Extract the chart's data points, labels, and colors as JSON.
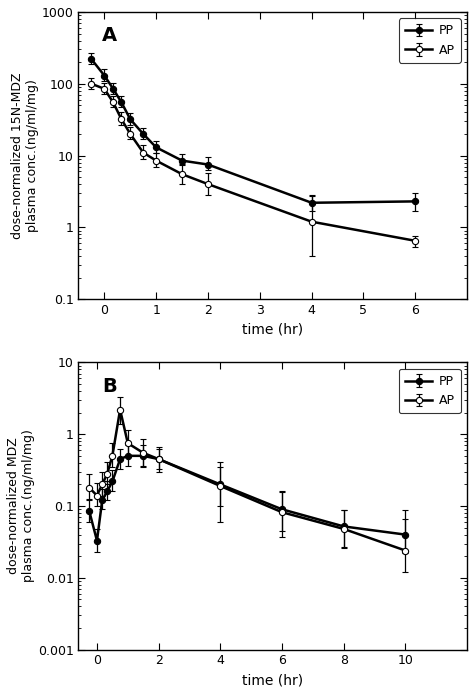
{
  "panel_A": {
    "title": "A",
    "xlabel": "time (hr)",
    "ylabel": "dose-normalized 15N-MDZ\nplasma conc.(ng/ml/mg)",
    "xlim": [
      -0.5,
      7
    ],
    "ylim": [
      0.1,
      1000
    ],
    "xticks": [
      0,
      1,
      2,
      3,
      4,
      5,
      6
    ],
    "yticks": [
      0.1,
      1,
      10,
      100,
      1000
    ],
    "PP": {
      "x": [
        -0.25,
        0.0,
        0.17,
        0.33,
        0.5,
        0.75,
        1.0,
        1.5,
        2.0,
        4.0,
        6.0
      ],
      "y": [
        220,
        130,
        85,
        55,
        32,
        20,
        13,
        8.5,
        7.5,
        2.2,
        2.3
      ],
      "yerr_lo": [
        30,
        20,
        12,
        8,
        5,
        3,
        2,
        1.2,
        1.2,
        0.5,
        0.6
      ],
      "yerr_hi": [
        45,
        28,
        18,
        12,
        7,
        4,
        3,
        2.0,
        2.0,
        0.6,
        0.7
      ],
      "markerfacecolor": "#000000",
      "label": "PP"
    },
    "AP": {
      "x": [
        -0.25,
        0.0,
        0.17,
        0.33,
        0.5,
        0.75,
        1.0,
        1.5,
        2.0,
        4.0,
        6.0
      ],
      "y": [
        100,
        85,
        55,
        32,
        20,
        11,
        8.5,
        5.5,
        4.0,
        1.2,
        0.65
      ],
      "yerr_lo": [
        15,
        12,
        8,
        5,
        3,
        2,
        1.5,
        1.5,
        1.2,
        0.8,
        0.12
      ],
      "yerr_hi": [
        22,
        18,
        12,
        8,
        5,
        3,
        2.5,
        2.2,
        1.8,
        1.5,
        0.1
      ],
      "markerfacecolor": "#ffffff",
      "label": "AP"
    }
  },
  "panel_B": {
    "title": "B",
    "xlabel": "time (hr)",
    "ylabel": "dose-normalized MDZ\nplasma conc.(ng/ml/mg)",
    "xlim": [
      -0.6,
      12
    ],
    "ylim": [
      0.001,
      10
    ],
    "xticks": [
      0,
      2,
      4,
      6,
      8,
      10
    ],
    "yticks": [
      0.001,
      0.01,
      0.1,
      1,
      10
    ],
    "PP": {
      "x": [
        -0.25,
        0.0,
        0.17,
        0.33,
        0.5,
        0.75,
        1.0,
        1.5,
        2.0,
        4.0,
        6.0,
        8.0,
        10.0
      ],
      "y": [
        0.085,
        0.033,
        0.12,
        0.16,
        0.22,
        0.45,
        0.5,
        0.5,
        0.45,
        0.2,
        0.09,
        0.052,
        0.04
      ],
      "yerr_lo": [
        0.025,
        0.01,
        0.03,
        0.04,
        0.06,
        0.12,
        0.14,
        0.14,
        0.12,
        0.1,
        0.045,
        0.025,
        0.018
      ],
      "yerr_hi": [
        0.04,
        0.015,
        0.05,
        0.06,
        0.1,
        0.18,
        0.2,
        0.2,
        0.18,
        0.15,
        0.065,
        0.035,
        0.025
      ],
      "markerfacecolor": "#000000",
      "label": "PP"
    },
    "AP": {
      "x": [
        -0.25,
        0.0,
        0.17,
        0.33,
        0.5,
        0.75,
        1.0,
        1.5,
        2.0,
        4.0,
        6.0,
        8.0,
        10.0
      ],
      "y": [
        0.18,
        0.14,
        0.2,
        0.28,
        0.5,
        2.2,
        0.75,
        0.55,
        0.45,
        0.19,
        0.082,
        0.048,
        0.024
      ],
      "yerr_lo": [
        0.06,
        0.04,
        0.06,
        0.08,
        0.15,
        0.8,
        0.25,
        0.2,
        0.15,
        0.13,
        0.045,
        0.022,
        0.012
      ],
      "yerr_hi": [
        0.1,
        0.07,
        0.1,
        0.13,
        0.25,
        1.1,
        0.4,
        0.3,
        0.22,
        0.22,
        0.08,
        0.04,
        0.065
      ],
      "markerfacecolor": "#ffffff",
      "label": "AP"
    }
  }
}
